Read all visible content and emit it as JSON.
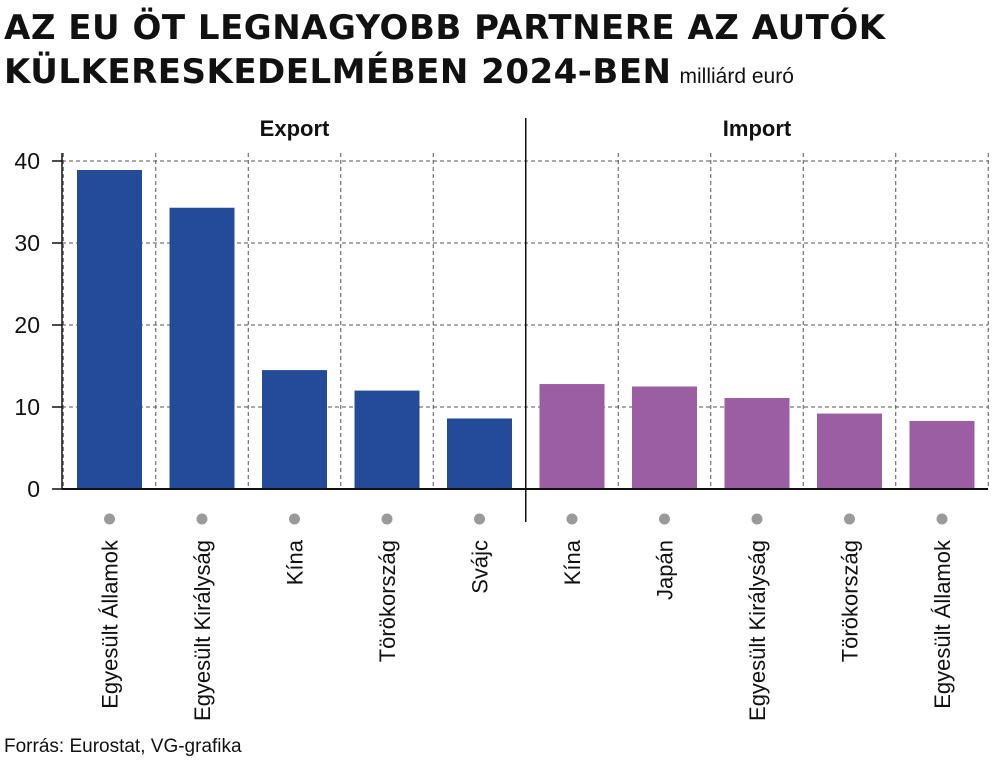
{
  "title_line1": "AZ EU ÖT LEGNAGYOBB PARTNERE AZ AUTÓK",
  "title_line2": "KÜLKERESKEDELMÉBEN 2024-BEN",
  "unit": "milliárd euró",
  "source": "Forrás: Eurostat, VG-grafika",
  "chart_data": {
    "type": "bar",
    "ylim": [
      0,
      40
    ],
    "yticks": [
      0,
      10,
      20,
      30,
      40
    ],
    "grid": true,
    "groups": [
      {
        "name": "Export",
        "color": "#244b9a",
        "categories": [
          "Egyesült Államok",
          "Egyesült Királyság",
          "Kína",
          "Törökország",
          "Svájc"
        ],
        "values": [
          38.9,
          34.3,
          14.5,
          12.0,
          8.6
        ]
      },
      {
        "name": "Import",
        "color": "#9b5ea3",
        "categories": [
          "Kína",
          "Japán",
          "Egyesült Királyság",
          "Törökország",
          "Egyesült Államok"
        ],
        "values": [
          12.8,
          12.5,
          11.1,
          9.2,
          8.3
        ]
      }
    ]
  }
}
